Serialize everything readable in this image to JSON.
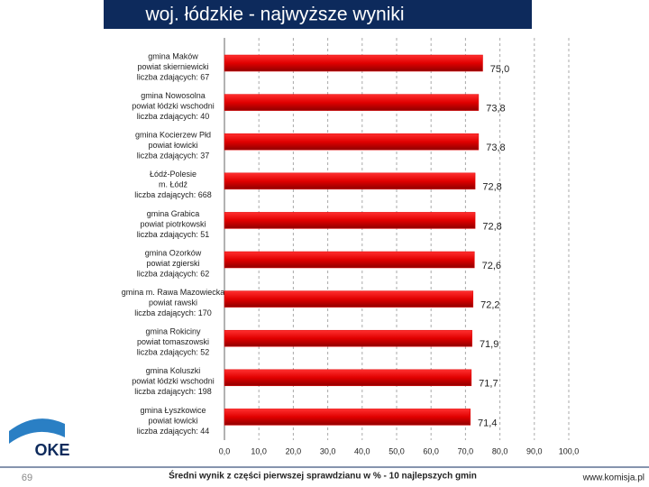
{
  "header": {
    "title": "woj. łódzkie - najwyższe wyniki",
    "logo": "OKE"
  },
  "chart_data": {
    "type": "bar",
    "orientation": "horizontal",
    "categories": [
      [
        "gmina Maków",
        "powiat skierniewicki",
        "liczba zdających: 67"
      ],
      [
        "gmina Nowosolna",
        "powiat łódzki wschodni",
        "liczba zdających: 40"
      ],
      [
        "gmina Kocierzew Płd",
        "powiat łowicki",
        "liczba zdających: 37"
      ],
      [
        "Łódź-Polesie",
        "m. Łódź",
        "liczba zdających: 668"
      ],
      [
        "gmina Grabica",
        "powiat piotrkowski",
        "liczba zdających: 51"
      ],
      [
        "gmina Ozorków",
        "powiat zgierski",
        "liczba zdających: 62"
      ],
      [
        "gmina m. Rawa Mazowiecka",
        "powiat rawski",
        "liczba zdających: 170"
      ],
      [
        "gmina Rokiciny",
        "powiat tomaszowski",
        "liczba zdających: 52"
      ],
      [
        "gmina Koluszki",
        "powiat łódzki wschodni",
        "liczba zdających: 198"
      ],
      [
        "gmina Łyszkowice",
        "powiat łowicki",
        "liczba zdających: 44"
      ]
    ],
    "values": [
      75.0,
      73.8,
      73.8,
      72.8,
      72.8,
      72.6,
      72.2,
      71.9,
      71.7,
      71.4
    ],
    "value_labels": [
      "75,0",
      "73,8",
      "73,8",
      "72,8",
      "72,8",
      "72,6",
      "72,2",
      "71,9",
      "71,7",
      "71,4"
    ],
    "color": "#e00000",
    "xlim": [
      0,
      100
    ],
    "xticks": [
      {
        "value": 0,
        "label": "0,0"
      },
      {
        "value": 10,
        "label": "10,0"
      },
      {
        "value": 20,
        "label": "20,0"
      },
      {
        "value": 30,
        "label": "30,0"
      },
      {
        "value": 40,
        "label": "40,0"
      },
      {
        "value": 50,
        "label": "50,0"
      },
      {
        "value": 60,
        "label": "60,0"
      },
      {
        "value": 70,
        "label": "70,0"
      },
      {
        "value": 80,
        "label": "80,0"
      },
      {
        "value": 90,
        "label": "90,0"
      },
      {
        "value": 100,
        "label": "100,0"
      }
    ],
    "x_label": "Średni wynik z części pierwszej sprawdzianu w % - 10 najlepszych gmin",
    "grid": true
  },
  "footer": {
    "page": "69",
    "url": "www.komisja.pl"
  }
}
